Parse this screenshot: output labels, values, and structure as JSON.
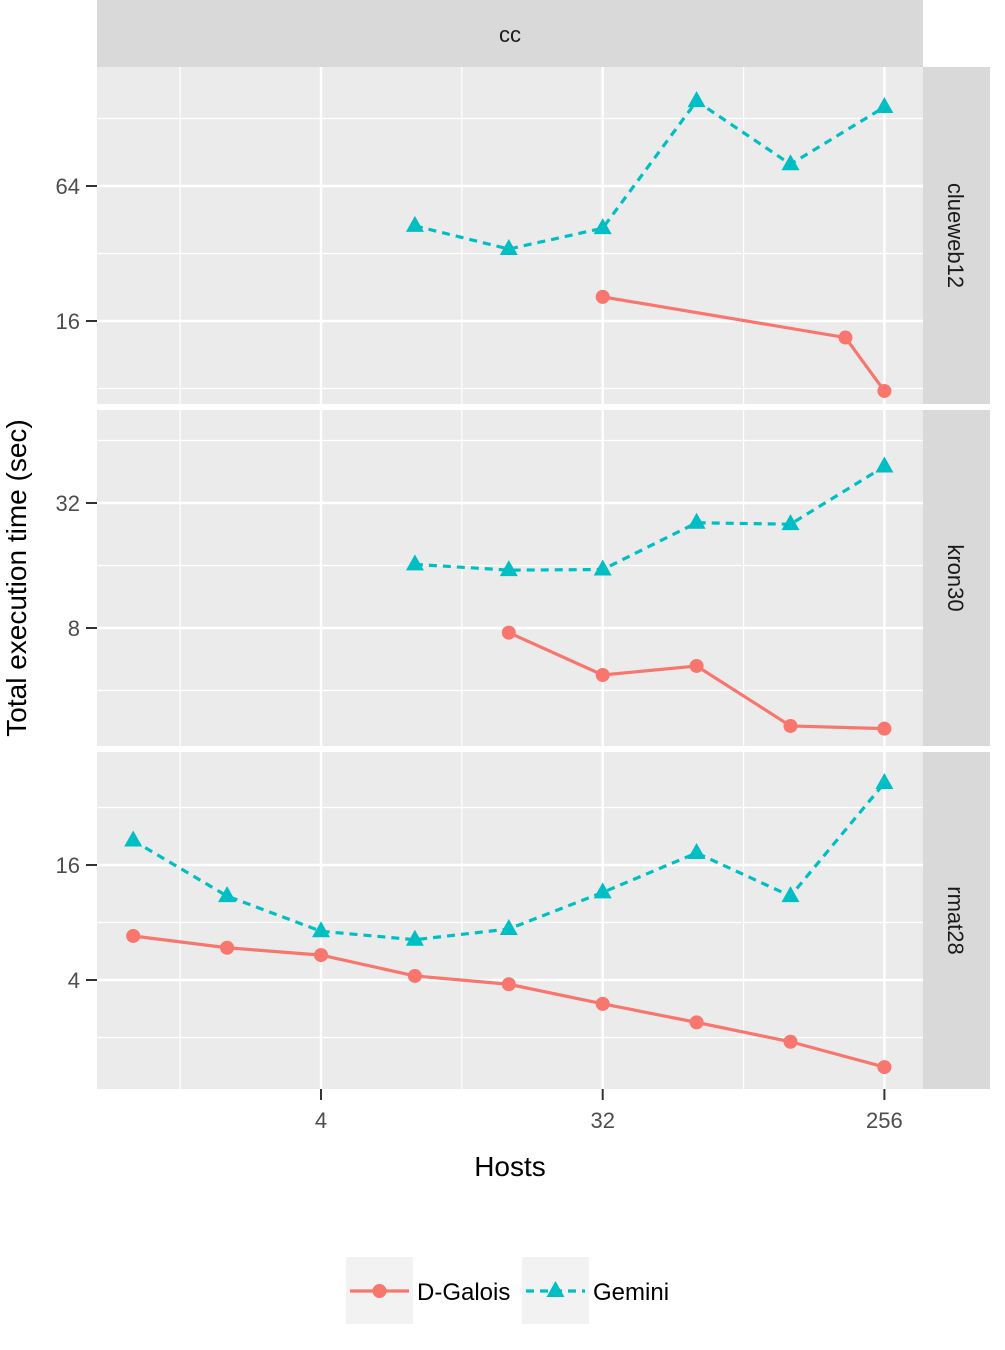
{
  "chart_data": {
    "type": "line",
    "facet_column": "cc",
    "xlabel": "Hosts",
    "ylabel": "Total execution time (sec)",
    "x_scale": "log2",
    "y_scale": "log2",
    "x_ticks": [
      4,
      32,
      256
    ],
    "legend_position": "bottom",
    "colors": {
      "D-Galois": "#F8766D",
      "Gemini": "#00BFC4"
    },
    "series_names": [
      "D-Galois",
      "Gemini"
    ],
    "panels": [
      {
        "label": "clueweb12",
        "y_ticks": [
          16,
          64
        ],
        "series": [
          {
            "name": "D-Galois",
            "x": [
              32,
              192,
              256
            ],
            "y": [
              20.5,
              13.5,
              7.8
            ]
          },
          {
            "name": "Gemini",
            "x": [
              8,
              16,
              32,
              64,
              128,
              256
            ],
            "y": [
              42.5,
              33.5,
              41.5,
              153.0,
              80.0,
              144.0
            ]
          }
        ]
      },
      {
        "label": "kron30",
        "y_ticks": [
          8,
          32
        ],
        "series": [
          {
            "name": "D-Galois",
            "x": [
              16,
              32,
              64,
              128,
              256
            ],
            "y": [
              7.6,
              4.75,
              5.25,
              2.7,
              2.62
            ]
          },
          {
            "name": "Gemini",
            "x": [
              8,
              16,
              32,
              64,
              128,
              256
            ],
            "y": [
              16.2,
              15.2,
              15.3,
              25.7,
              25.3,
              48.0
            ]
          }
        ]
      },
      {
        "label": "rmat28",
        "y_ticks": [
          4,
          16
        ],
        "series": [
          {
            "name": "D-Galois",
            "x": [
              1,
              2,
              4,
              8,
              16,
              32,
              64,
              128,
              256
            ],
            "y": [
              6.8,
              5.9,
              5.4,
              4.2,
              3.8,
              3.0,
              2.4,
              1.9,
              1.4
            ]
          },
          {
            "name": "Gemini",
            "x": [
              1,
              2,
              4,
              8,
              16,
              32,
              64,
              128,
              256
            ],
            "y": [
              21.5,
              11.0,
              7.2,
              6.5,
              7.4,
              11.5,
              18.5,
              11.0,
              43.0
            ]
          }
        ]
      }
    ]
  }
}
